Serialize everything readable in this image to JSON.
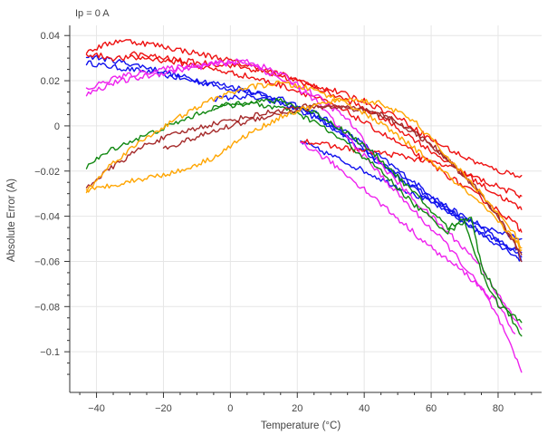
{
  "chart_data": {
    "type": "line",
    "title": "Ip = 0 A",
    "xlabel": "Temperature (°C)",
    "ylabel": "Absolute Error (A)",
    "xlim": [
      -48,
      93
    ],
    "ylim": [
      -0.118,
      0.0445
    ],
    "x_ticks": [
      -40,
      -20,
      0,
      20,
      40,
      60,
      80
    ],
    "x_tick_labels": [
      "−40",
      "−20",
      "0",
      "20",
      "40",
      "60",
      "80"
    ],
    "y_ticks": [
      0.04,
      0.02,
      0,
      -0.02,
      -0.04,
      -0.06,
      -0.08,
      -0.1
    ],
    "y_tick_labels": [
      "0.04",
      "0.02",
      "0",
      "−0.02",
      "−0.04",
      "−0.06",
      "−0.08",
      "−0.1"
    ],
    "grid": true,
    "legend": "none",
    "colors": {
      "red": "#ee1111",
      "blue": "#1111ee",
      "magenta": "#ee22ee",
      "green": "#118811",
      "brown": "#a52a2a",
      "orange": "#ffa500",
      "grid": "#e6e6e6",
      "axis": "#333333"
    },
    "series": [
      {
        "color": "blue",
        "noise": 0.0012,
        "x": [
          -43,
          -35,
          -25,
          -15,
          -5,
          5,
          15,
          25,
          35,
          45,
          55,
          65,
          75,
          85,
          87
        ],
        "y": [
          0.028,
          0.026,
          0.024,
          0.021,
          0.018,
          0.015,
          0.011,
          0.006,
          -0.003,
          -0.014,
          -0.025,
          -0.036,
          -0.045,
          -0.056,
          -0.058
        ]
      },
      {
        "color": "blue",
        "noise": 0.0012,
        "x": [
          -43,
          -35,
          -25,
          -15,
          -5,
          5,
          15,
          25,
          35,
          45,
          55,
          65,
          75,
          85,
          87
        ],
        "y": [
          0.031,
          0.029,
          0.026,
          0.022,
          0.019,
          0.016,
          0.012,
          0.005,
          -0.006,
          -0.017,
          -0.028,
          -0.038,
          -0.047,
          -0.055,
          -0.056
        ]
      },
      {
        "color": "blue",
        "noise": 0.0012,
        "x": [
          21,
          30,
          40,
          50,
          60,
          70,
          80,
          87
        ],
        "y": [
          -0.007,
          -0.013,
          -0.02,
          -0.027,
          -0.034,
          -0.041,
          -0.047,
          -0.05
        ]
      },
      {
        "color": "blue",
        "noise": 0.0012,
        "x": [
          -5,
          5,
          15,
          25,
          35,
          45,
          55,
          65,
          75,
          85,
          87
        ],
        "y": [
          0.012,
          0.013,
          0.01,
          0.004,
          -0.005,
          -0.016,
          -0.027,
          -0.037,
          -0.048,
          -0.057,
          -0.06
        ]
      },
      {
        "color": "red",
        "noise": 0.0013,
        "x": [
          -43,
          -33,
          -23,
          -13,
          -3,
          7,
          17,
          27,
          37,
          47,
          57,
          67,
          77,
          85,
          87
        ],
        "y": [
          0.033,
          0.038,
          0.036,
          0.033,
          0.03,
          0.026,
          0.022,
          0.016,
          0.01,
          0.002,
          -0.008,
          -0.018,
          -0.028,
          -0.035,
          -0.037
        ]
      },
      {
        "color": "red",
        "noise": 0.0013,
        "x": [
          -43,
          -35,
          -25,
          -15,
          -5,
          5,
          15,
          25,
          35,
          45,
          55,
          65,
          75,
          85,
          87
        ],
        "y": [
          0.032,
          0.03,
          0.03,
          0.028,
          0.025,
          0.022,
          0.018,
          0.013,
          0.006,
          -0.003,
          -0.012,
          -0.022,
          -0.032,
          -0.043,
          -0.047
        ]
      },
      {
        "color": "red",
        "noise": 0.0013,
        "x": [
          21,
          30,
          40,
          50,
          60,
          65,
          70,
          80,
          85,
          87
        ],
        "y": [
          -0.006,
          -0.009,
          -0.011,
          -0.013,
          -0.016,
          -0.018,
          -0.021,
          -0.027,
          -0.03,
          -0.031
        ]
      },
      {
        "color": "red",
        "noise": 0.0013,
        "x": [
          -30,
          -20,
          -10,
          0,
          10,
          20,
          30,
          40,
          50,
          60,
          70,
          80,
          87
        ],
        "y": [
          0.032,
          0.03,
          0.028,
          0.027,
          0.024,
          0.02,
          0.016,
          0.011,
          0.004,
          -0.006,
          -0.014,
          -0.02,
          -0.022
        ]
      },
      {
        "color": "magenta",
        "noise": 0.0013,
        "x": [
          -43,
          -35,
          -25,
          -15,
          -5,
          5,
          15,
          25,
          35,
          45,
          55,
          65,
          75,
          80,
          87
        ],
        "y": [
          0.014,
          0.019,
          0.022,
          0.025,
          0.027,
          0.029,
          0.023,
          0.014,
          0.003,
          -0.017,
          -0.033,
          -0.047,
          -0.062,
          -0.075,
          -0.09
        ]
      },
      {
        "color": "magenta",
        "noise": 0.0013,
        "x": [
          -43,
          -35,
          -25,
          -15,
          -5,
          5,
          15,
          25,
          35,
          45,
          55,
          65,
          75,
          80,
          87
        ],
        "y": [
          0.016,
          0.021,
          0.024,
          0.026,
          0.028,
          0.028,
          0.021,
          0.012,
          -0.005,
          -0.022,
          -0.038,
          -0.053,
          -0.072,
          -0.085,
          -0.109
        ]
      },
      {
        "color": "magenta",
        "noise": 0.0013,
        "x": [
          21,
          30,
          40,
          50,
          60,
          70,
          80,
          85
        ],
        "y": [
          -0.007,
          -0.016,
          -0.028,
          -0.041,
          -0.054,
          -0.065,
          -0.079,
          -0.092
        ]
      },
      {
        "color": "green",
        "noise": 0.0012,
        "x": [
          -43,
          -35,
          -25,
          -15,
          -5,
          5,
          15,
          25,
          35,
          45,
          55,
          65,
          72,
          75,
          80,
          87
        ],
        "y": [
          -0.018,
          -0.01,
          -0.004,
          0.002,
          0.008,
          0.011,
          0.011,
          0.006,
          -0.003,
          -0.015,
          -0.03,
          -0.045,
          -0.04,
          -0.062,
          -0.075,
          -0.093
        ]
      },
      {
        "color": "green",
        "noise": 0.0012,
        "x": [
          -5,
          5,
          15,
          25,
          35,
          45,
          55,
          65,
          70,
          75,
          80,
          87
        ],
        "y": [
          0.008,
          0.01,
          0.008,
          0.002,
          -0.008,
          -0.02,
          -0.035,
          -0.047,
          -0.042,
          -0.065,
          -0.079,
          -0.087
        ]
      },
      {
        "color": "brown",
        "noise": 0.0012,
        "x": [
          -43,
          -35,
          -25,
          -15,
          -5,
          5,
          15,
          25,
          35,
          45,
          55,
          65,
          75,
          85,
          87
        ],
        "y": [
          -0.027,
          -0.018,
          -0.008,
          -0.003,
          0.001,
          0.004,
          0.007,
          0.009,
          0.008,
          0.005,
          -0.003,
          -0.015,
          -0.03,
          -0.052,
          -0.06
        ]
      },
      {
        "color": "brown",
        "noise": 0.0012,
        "x": [
          -20,
          -10,
          0,
          10,
          20,
          30,
          40,
          50,
          60,
          70,
          80,
          87
        ],
        "y": [
          -0.01,
          -0.005,
          0.0,
          0.004,
          0.007,
          0.009,
          0.007,
          0.002,
          -0.008,
          -0.022,
          -0.04,
          -0.057
        ]
      },
      {
        "color": "orange",
        "noise": 0.0012,
        "x": [
          -43,
          -35,
          -25,
          -15,
          -5,
          5,
          15,
          25,
          35,
          45,
          55,
          65,
          75,
          85,
          87
        ],
        "y": [
          -0.029,
          -0.016,
          -0.005,
          0.004,
          0.012,
          0.017,
          0.019,
          0.016,
          0.01,
          0.001,
          -0.01,
          -0.022,
          -0.035,
          -0.05,
          -0.055
        ]
      },
      {
        "color": "orange",
        "noise": 0.0012,
        "x": [
          -43,
          -35,
          -25,
          -15,
          -5,
          5,
          15,
          25,
          35,
          45,
          55,
          65,
          75,
          85,
          87
        ],
        "y": [
          -0.029,
          -0.026,
          -0.023,
          -0.02,
          -0.014,
          -0.004,
          0.004,
          0.009,
          0.012,
          0.01,
          0.002,
          -0.014,
          -0.03,
          -0.048,
          -0.054
        ]
      }
    ]
  }
}
